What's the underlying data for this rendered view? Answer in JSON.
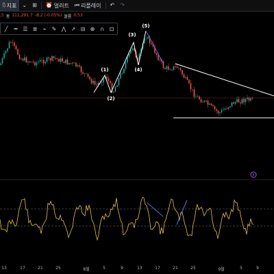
{
  "toolbar": {
    "indicators_label": "지표",
    "alert_label": "얼러트",
    "replay_label": "리플레이",
    "icons": [
      "indicators-icon",
      "chevron-down-icon",
      "grid-icon",
      "alert-icon",
      "replay-icon",
      "undo-icon",
      "redo-icon"
    ]
  },
  "legend": {
    "prefix": ",5",
    "volume_label": "총",
    "volume_value": "111,291.7",
    "change": "-8.2 (-0.05%)",
    "bollinger_label": "볼륨",
    "bollinger_value": "0.53"
  },
  "drawing_tools": [
    "trend-line-icon",
    "horizontal-line-icon",
    "fib-icon",
    "channel-icon",
    "brush-icon",
    "text-icon",
    "pattern-icon",
    "prediction-icon",
    "measure-icon",
    "zoom-icon",
    "magnet-icon",
    "lock-icon"
  ],
  "wave_labels": [
    "(1)",
    "(2)",
    "(3)",
    "(4)",
    "(5)"
  ],
  "event_marker": "E",
  "x_axis_labels": [
    "13",
    "17",
    "21",
    "25",
    "8월",
    "5",
    "9",
    "13",
    "17",
    "21",
    "25",
    "9월",
    "5",
    "9"
  ],
  "colors": {
    "up": "#26a69a",
    "down": "#ef5350",
    "wave": "#ffffff",
    "trend_blue": "#5b6ee1",
    "oscillator": "#e6c34a",
    "level": "#ef5350",
    "event": "#9c5bd6"
  }
}
